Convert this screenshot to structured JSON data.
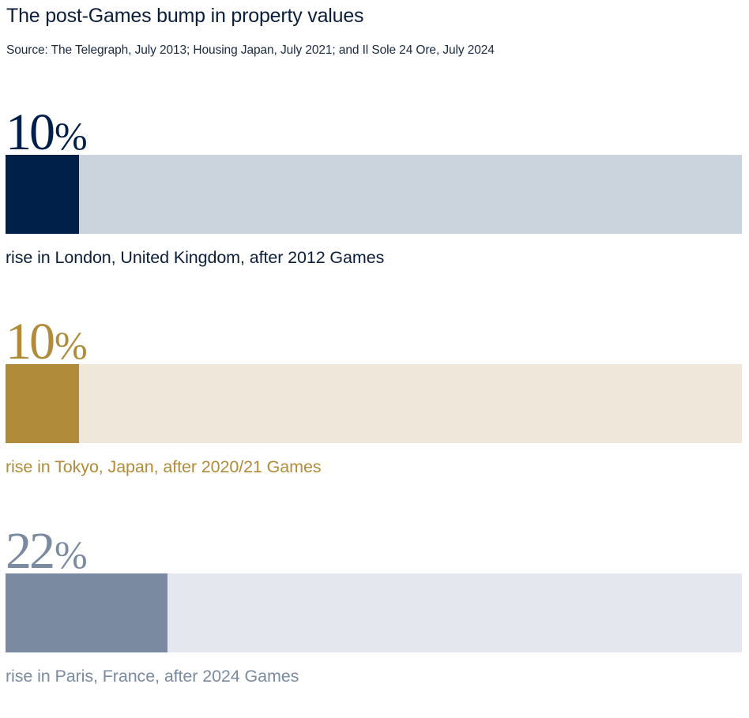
{
  "header": {
    "title": "The post-Games bump in property values",
    "source": "Source: The Telegraph, July 2013; Housing Japan, July 2021; and Il Sole 24 Ore, July 2024"
  },
  "chart_data": {
    "type": "bar",
    "orientation": "horizontal",
    "title": "The post-Games bump in property values",
    "subtitle": "Source: The Telegraph, July 2013; Housing Japan, July 2021; and Il Sole 24 Ore, July 2024",
    "xlabel": "",
    "ylabel": "",
    "xlim": [
      0,
      100
    ],
    "unit": "%",
    "grid": false,
    "legend": "none",
    "categories": [
      "rise in London, United Kingdom, after 2012 Games",
      "rise in Tokyo, Japan, after 2020/21 Games",
      "rise in Paris, France, after 2024 Games"
    ],
    "values": [
      10,
      10,
      22
    ],
    "items": [
      {
        "value": 10,
        "value_label": "10",
        "unit_label": "%",
        "caption": "rise in London, United Kingdom, after 2012 Games",
        "fill_color": "#00204a",
        "track_color": "#cbd3dc",
        "text_color": "#00204a",
        "caption_color": "#0b1e3a"
      },
      {
        "value": 10,
        "value_label": "10",
        "unit_label": "%",
        "caption": "rise in Tokyo, Japan, after 2020/21 Games",
        "fill_color": "#b08b3a",
        "track_color": "#efe7d9",
        "text_color": "#b08b3a",
        "caption_color": "#b08b3a"
      },
      {
        "value": 22,
        "value_label": "22",
        "unit_label": "%",
        "caption": "rise in Paris, France, after 2024 Games",
        "fill_color": "#7a8ba1",
        "track_color": "#e4e8ee",
        "text_color": "#7a8ba1",
        "caption_color": "#7a8ba1"
      }
    ]
  }
}
